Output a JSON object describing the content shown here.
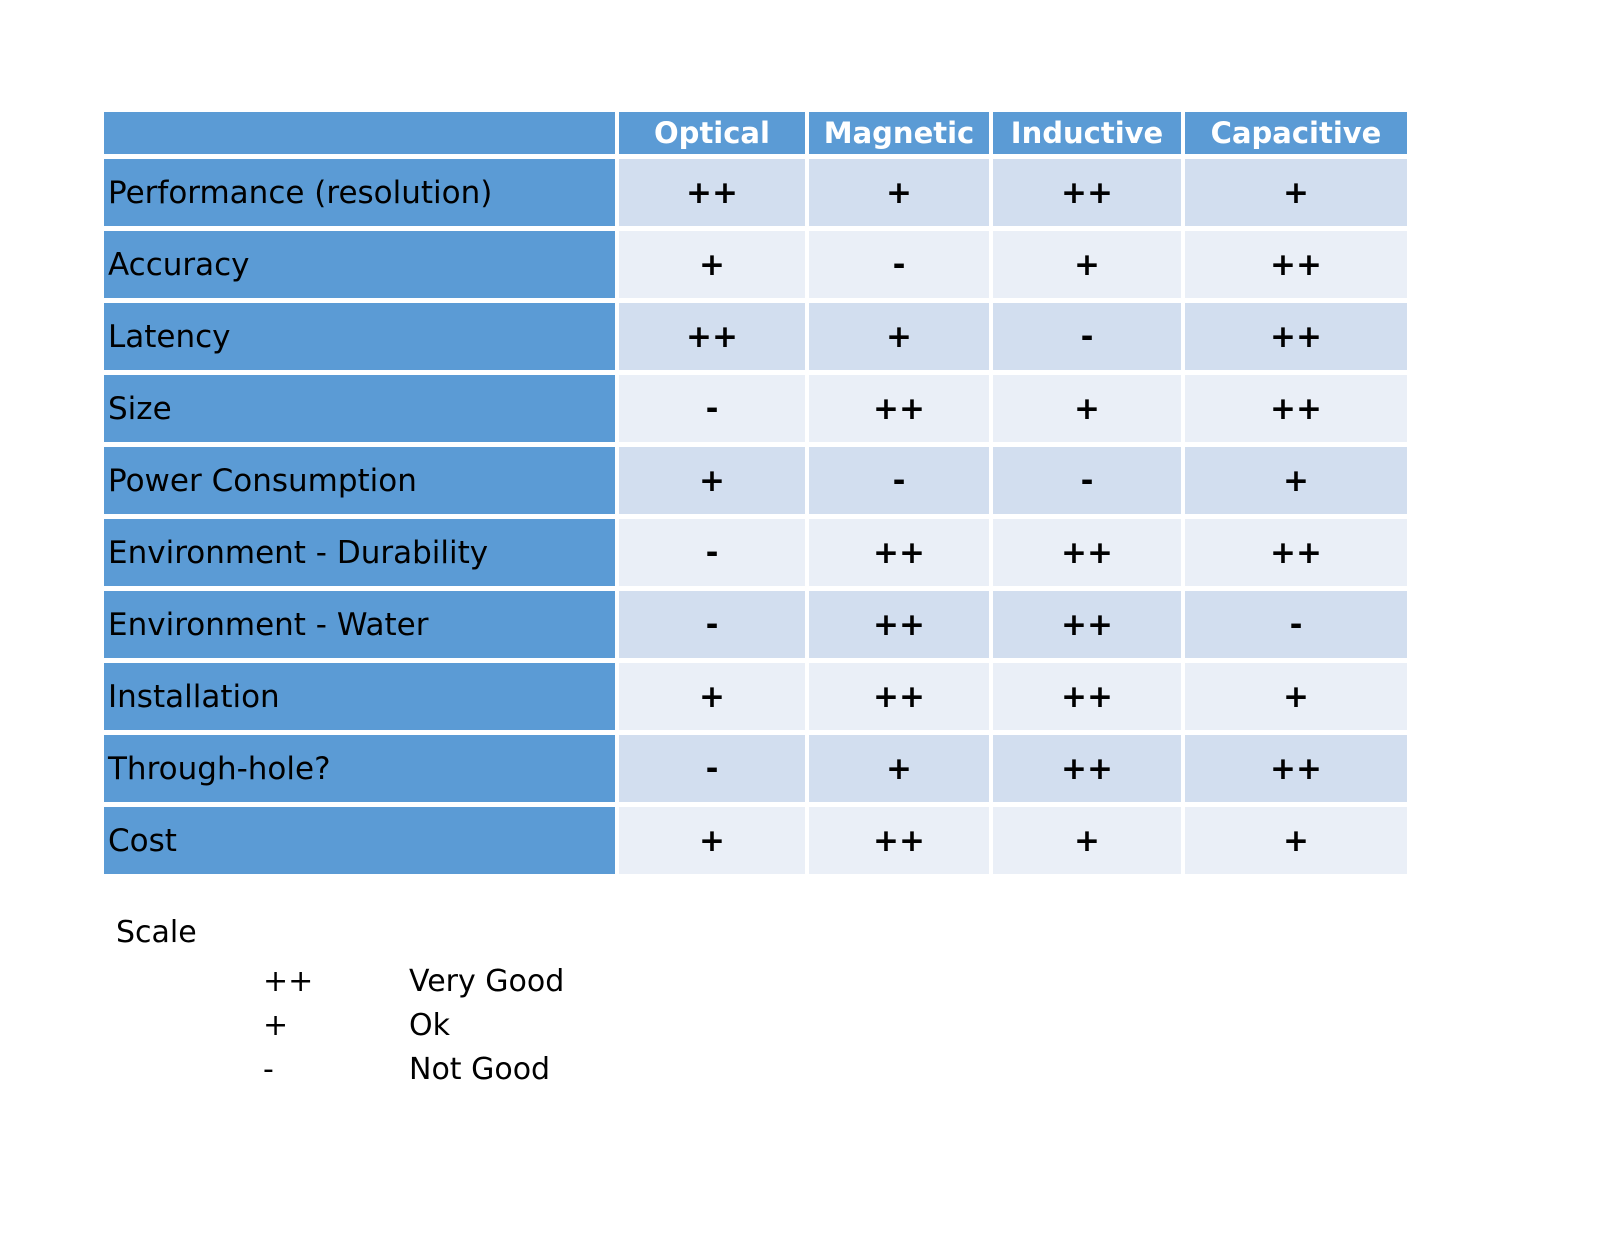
{
  "table": {
    "corner": "",
    "columns": [
      "Optical",
      "Magnetic",
      "Inductive",
      "Capacitive"
    ],
    "rows": [
      {
        "label": "Performance (resolution)",
        "values": [
          "++",
          "+",
          "++",
          "+"
        ]
      },
      {
        "label": "Accuracy",
        "values": [
          "+",
          "-",
          "+",
          "++"
        ]
      },
      {
        "label": "Latency",
        "values": [
          "++",
          "+",
          "-",
          "++"
        ]
      },
      {
        "label": "Size",
        "values": [
          "-",
          "++",
          "+",
          "++"
        ]
      },
      {
        "label": "Power Consumption",
        "values": [
          "+",
          "-",
          "-",
          "+"
        ]
      },
      {
        "label": "Environment - Durability",
        "values": [
          "-",
          "++",
          "++",
          "++"
        ]
      },
      {
        "label": "Environment - Water",
        "values": [
          "-",
          "++",
          "++",
          "-"
        ]
      },
      {
        "label": "Installation",
        "values": [
          "+",
          "++",
          "++",
          "+"
        ]
      },
      {
        "label": "Through-hole?",
        "values": [
          "-",
          "+",
          "++",
          "++"
        ]
      },
      {
        "label": "Cost",
        "values": [
          "+",
          "++",
          "+",
          "+"
        ]
      }
    ]
  },
  "legend": {
    "title": "Scale",
    "items": [
      {
        "symbol": "++",
        "meaning": "Very Good"
      },
      {
        "symbol": "+",
        "meaning": "Ok"
      },
      {
        "symbol": "-",
        "meaning": "Not Good"
      }
    ]
  },
  "colors": {
    "header_blue": "#5b9bd5",
    "band_dark": "#d2deef",
    "band_light": "#eaeff7"
  }
}
